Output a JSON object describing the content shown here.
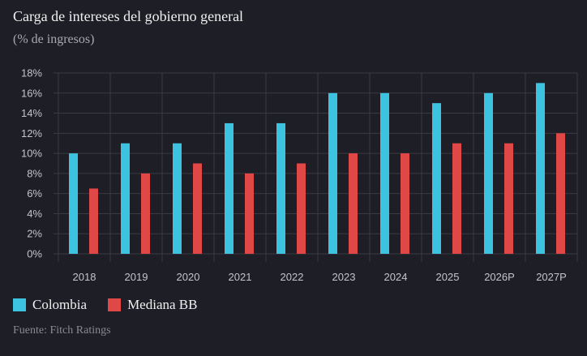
{
  "header": {
    "title": "Carga de intereses del gobierno general",
    "subtitle": "(% de ingresos)"
  },
  "chart_data": {
    "type": "bar",
    "title": "Carga de intereses del gobierno general",
    "subtitle": "(% de ingresos)",
    "xlabel": "",
    "ylabel": "",
    "ylim": [
      0,
      18
    ],
    "y_ticks": [
      0,
      2,
      4,
      6,
      8,
      10,
      12,
      14,
      16,
      18
    ],
    "y_tick_format": "%",
    "grid": true,
    "categories": [
      "2018",
      "2019",
      "2020",
      "2021",
      "2022",
      "2023",
      "2024",
      "2025",
      "2026P",
      "2027P"
    ],
    "series": [
      {
        "name": "Colombia",
        "color": "#3cc3e0",
        "values": [
          10,
          11,
          11,
          13,
          13,
          16,
          16,
          15,
          16,
          17
        ]
      },
      {
        "name": "Mediana BB",
        "color": "#e04848",
        "values": [
          6.5,
          8,
          9,
          8,
          9,
          10,
          10,
          11,
          11,
          12
        ]
      }
    ],
    "legend_position": "bottom-left"
  },
  "legend": {
    "items": [
      {
        "label": "Colombia",
        "color": "#3cc3e0"
      },
      {
        "label": "Mediana BB",
        "color": "#e04848"
      }
    ]
  },
  "footer": {
    "source": "Fuente: Fitch Ratings"
  },
  "colors": {
    "background": "#1e1e26",
    "grid": "#3a3a44"
  }
}
